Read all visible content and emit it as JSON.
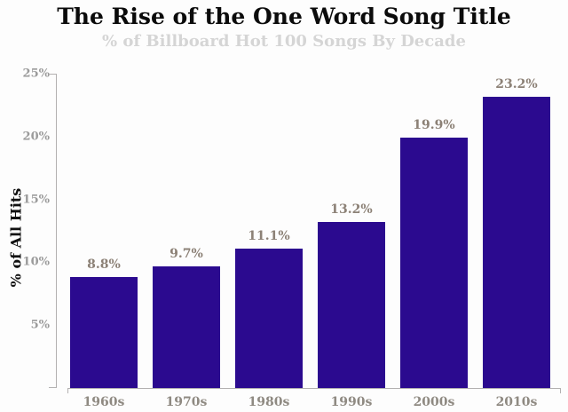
{
  "chart_data": {
    "type": "bar",
    "title": "The Rise of the One Word Song Title",
    "subtitle": "% of Billboard Hot 100 Songs By Decade",
    "ylabel": "% of All Hits",
    "xlabel": "",
    "categories": [
      "1960s",
      "1970s",
      "1980s",
      "1990s",
      "2000s",
      "2010s"
    ],
    "values": [
      8.8,
      9.7,
      11.1,
      13.2,
      19.9,
      23.2
    ],
    "value_labels": [
      "8.8%",
      "9.7%",
      "11.1%",
      "13.2%",
      "19.9%",
      "23.2%"
    ],
    "ytick_values": [
      5,
      10,
      15,
      20,
      25
    ],
    "ytick_labels": [
      "5%",
      "10%",
      "15%",
      "20%",
      "25%"
    ],
    "ylim": [
      0,
      25
    ],
    "grid": false,
    "legend": null,
    "colors": {
      "bar": "#2b0a8f",
      "title": "#0b0b0b",
      "subtitle": "#d5d5d5",
      "axis_line": "#b3b1b1",
      "ytick_label": "#9b9b9b",
      "value_label": "#8c8176",
      "category_label": "#8f8a82"
    }
  }
}
